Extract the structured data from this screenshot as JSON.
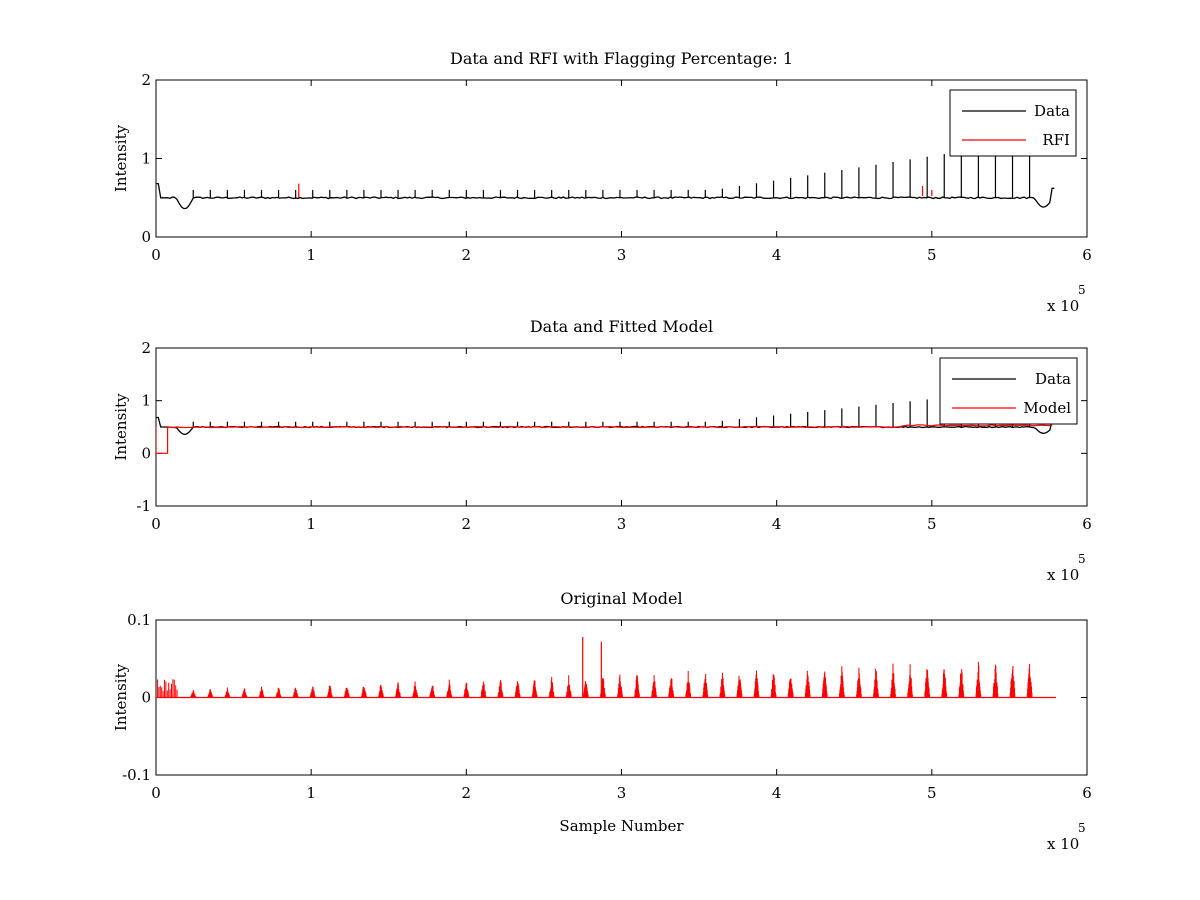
{
  "chart_data": [
    {
      "type": "line",
      "title": "Data and RFI with Flagging Percentage: 1",
      "xlabel": "",
      "ylabel": "Intensity",
      "xlim": [
        0,
        600000
      ],
      "ylim": [
        0,
        2
      ],
      "xticks": [
        "0",
        "1",
        "2",
        "3",
        "4",
        "5",
        "6"
      ],
      "yticks": [
        "0",
        "1",
        "2"
      ],
      "x_multiplier": "x 10",
      "x_multiplier_exp": "5",
      "legend_position": "top-right",
      "grid": false,
      "series": [
        {
          "name": "Data",
          "color": "#000000",
          "baseline": 0.5,
          "spike_spacing": 11000,
          "spike_height_start": 0.1,
          "spike_height_end": 0.6,
          "x_end": 580000
        },
        {
          "name": "RFI",
          "color": "#ff0000",
          "points": [
            [
              92000,
              0.5
            ],
            [
              92000,
              0.68
            ],
            [
              494000,
              0.52
            ],
            [
              494000,
              0.65
            ],
            [
              500000,
              0.52
            ],
            [
              500000,
              0.6
            ]
          ]
        }
      ]
    },
    {
      "type": "line",
      "title": "Data and Fitted Model",
      "xlabel": "",
      "ylabel": "Intensity",
      "xlim": [
        0,
        600000
      ],
      "ylim": [
        -1,
        2
      ],
      "xticks": [
        "0",
        "1",
        "2",
        "3",
        "4",
        "5",
        "6"
      ],
      "yticks": [
        "-1",
        "0",
        "1",
        "2"
      ],
      "x_multiplier": "x 10",
      "x_multiplier_exp": "5",
      "legend_position": "top-right",
      "grid": false,
      "series": [
        {
          "name": "Data",
          "color": "#000000",
          "baseline": 0.5,
          "spike_spacing": 11000,
          "spike_height_start": 0.1,
          "spike_height_end": 0.6,
          "x_end": 580000
        },
        {
          "name": "Model",
          "color": "#ff0000",
          "baseline": 0.5,
          "initial_drop": [
            [
              0,
              0.5
            ],
            [
              0,
              0
            ],
            [
              7500,
              0
            ],
            [
              7500,
              0.5
            ]
          ],
          "x_end": 580000
        }
      ]
    },
    {
      "type": "line",
      "title": "Original Model",
      "xlabel": "Sample Number",
      "ylabel": "Intensity",
      "xlim": [
        0,
        600000
      ],
      "ylim": [
        -0.1,
        0.1
      ],
      "xticks": [
        "0",
        "1",
        "2",
        "3",
        "4",
        "5",
        "6"
      ],
      "yticks": [
        "-0.1",
        "0",
        "0.1"
      ],
      "x_multiplier": "x 10",
      "x_multiplier_exp": "5",
      "grid": false,
      "series": [
        {
          "color": "#ff0000",
          "baseline": 0,
          "spike_spacing": 11000,
          "spike_height_start": 0.012,
          "spike_height_end": 0.05,
          "tall_spikes": [
            [
              275000,
              0.078
            ],
            [
              287000,
              0.072
            ]
          ],
          "x_end": 580000
        }
      ]
    }
  ]
}
